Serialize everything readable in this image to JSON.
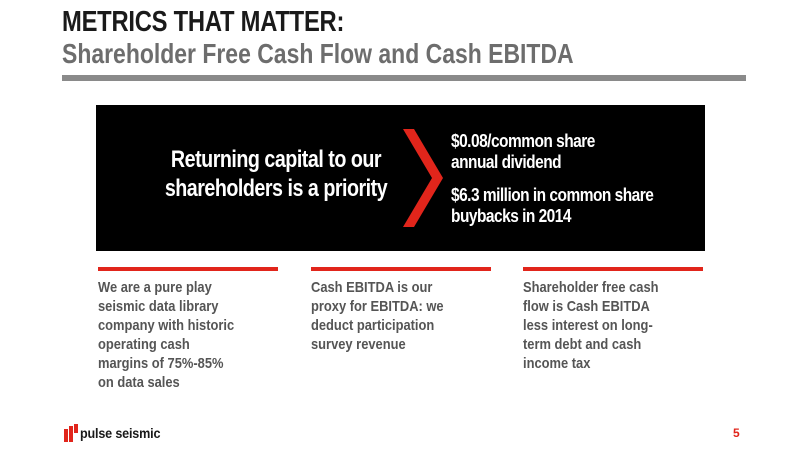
{
  "header": {
    "title": "METRICS THAT MATTER:",
    "subtitle": "Shareholder Free Cash Flow and Cash EBITDA"
  },
  "banner": {
    "left_line1": "Returning capital to our",
    "left_line2": "shareholders is a priority",
    "right_items": [
      {
        "line1": "$0.08/common share",
        "line2": "annual dividend"
      },
      {
        "line1": "$6.3 million in common share",
        "line2": "buybacks in 2014"
      }
    ]
  },
  "columns": [
    {
      "lines": [
        "We are a pure play",
        "seismic data library",
        "company with historic",
        "operating cash",
        "margins of 75%-85%",
        "on data sales"
      ]
    },
    {
      "lines": [
        "Cash EBITDA is our",
        "proxy for EBITDA: we",
        "deduct participation",
        "survey revenue"
      ]
    },
    {
      "lines": [
        "Shareholder free cash",
        "flow is Cash EBITDA",
        "less interest on long-",
        "term debt and cash",
        "income tax"
      ]
    }
  ],
  "footer": {
    "logo_text": "pulse seismic",
    "page_number": "5"
  },
  "colors": {
    "accent_red": "#e1251b",
    "banner_bg": "#000000",
    "title_rule": "#8a8a8a"
  }
}
